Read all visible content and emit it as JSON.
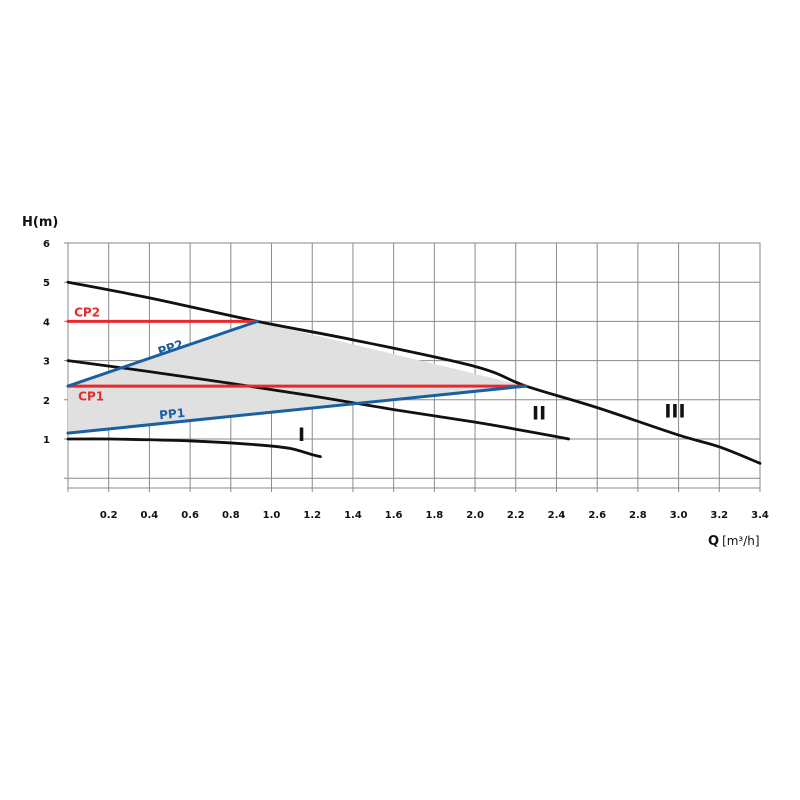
{
  "colors": {
    "grid": "#8a8a8a",
    "region_fill": "#e0e0e0",
    "pump_curve": "#111111",
    "cp": "#e8282b",
    "pp": "#1b5fa3"
  },
  "chart_data": {
    "type": "line",
    "xlabel": "Q",
    "xunit": "[m³/h]",
    "ylabel": "H(m)",
    "xlim": [
      0,
      3.4
    ],
    "ylim": [
      -0.25,
      6
    ],
    "grid": true,
    "x_ticks": [
      {
        "v": 0.2,
        "label": "0.2"
      },
      {
        "v": 0.4,
        "label": "0.4"
      },
      {
        "v": 0.6,
        "label": "0.6"
      },
      {
        "v": 0.8,
        "label": "0.8"
      },
      {
        "v": 1.0,
        "label": "1.0"
      },
      {
        "v": 1.2,
        "label": "1.2"
      },
      {
        "v": 1.4,
        "label": "1.4"
      },
      {
        "v": 1.6,
        "label": "1.6"
      },
      {
        "v": 1.8,
        "label": "1.8"
      },
      {
        "v": 2.0,
        "label": "2.0"
      },
      {
        "v": 2.2,
        "label": "2.2"
      },
      {
        "v": 2.4,
        "label": "2.4"
      },
      {
        "v": 2.6,
        "label": "2.6"
      },
      {
        "v": 2.8,
        "label": "2.8"
      },
      {
        "v": 3.0,
        "label": "3.0"
      },
      {
        "v": 3.2,
        "label": "3.2"
      },
      {
        "v": 3.4,
        "label": "3.4"
      }
    ],
    "y_ticks": [
      {
        "v": 1,
        "label": "1"
      },
      {
        "v": 2,
        "label": "2"
      },
      {
        "v": 3,
        "label": "3"
      },
      {
        "v": 4,
        "label": "4"
      },
      {
        "v": 5,
        "label": "5"
      },
      {
        "v": 6,
        "label": "6"
      }
    ],
    "shaded_region": [
      [
        0,
        1.15
      ],
      [
        2.25,
        2.35
      ],
      [
        0.93,
        4.0
      ],
      [
        0,
        2.35
      ]
    ],
    "series": [
      {
        "name": "I",
        "kind": "pump",
        "color": "#111111",
        "x": [
          0,
          0.2,
          0.4,
          0.6,
          0.8,
          1.0,
          1.1,
          1.2,
          1.24
        ],
        "y": [
          1.0,
          1.0,
          0.98,
          0.95,
          0.9,
          0.82,
          0.75,
          0.6,
          0.55
        ],
        "label_at": [
          1.13,
          0.95
        ]
      },
      {
        "name": "II",
        "kind": "pump",
        "color": "#111111",
        "x": [
          0,
          0.4,
          0.8,
          1.2,
          1.6,
          2.0,
          2.2,
          2.4,
          2.46
        ],
        "y": [
          3.0,
          2.72,
          2.42,
          2.1,
          1.75,
          1.43,
          1.25,
          1.06,
          1.0
        ],
        "label_at": [
          2.28,
          1.5
        ]
      },
      {
        "name": "III",
        "kind": "pump",
        "color": "#111111",
        "x": [
          0,
          0.4,
          0.93,
          1.4,
          2.0,
          2.25,
          2.6,
          3.0,
          3.2,
          3.4
        ],
        "y": [
          5.0,
          4.6,
          4.0,
          3.53,
          2.85,
          2.35,
          1.8,
          1.1,
          0.8,
          0.38
        ],
        "label_at": [
          2.93,
          1.55
        ]
      },
      {
        "name": "CP2",
        "kind": "mode",
        "color": "#e8282b",
        "x": [
          0,
          0.93
        ],
        "y": [
          4.0,
          4.0
        ],
        "label_at": [
          0.03,
          4.12
        ],
        "rotate": false
      },
      {
        "name": "CP1",
        "kind": "mode",
        "color": "#e8282b",
        "x": [
          0,
          2.25
        ],
        "y": [
          2.35,
          2.35
        ],
        "label_at": [
          0.05,
          1.98
        ],
        "rotate": false
      },
      {
        "name": "PP2",
        "kind": "mode",
        "color": "#1b5fa3",
        "x": [
          0,
          0.93
        ],
        "y": [
          2.35,
          4.0
        ],
        "label_at": [
          0.45,
          3.12
        ],
        "rotate": true
      },
      {
        "name": "PP1",
        "kind": "mode",
        "color": "#1b5fa3",
        "x": [
          0,
          2.25
        ],
        "y": [
          1.15,
          2.35
        ],
        "label_at": [
          0.45,
          1.5
        ],
        "rotate": true
      }
    ]
  }
}
